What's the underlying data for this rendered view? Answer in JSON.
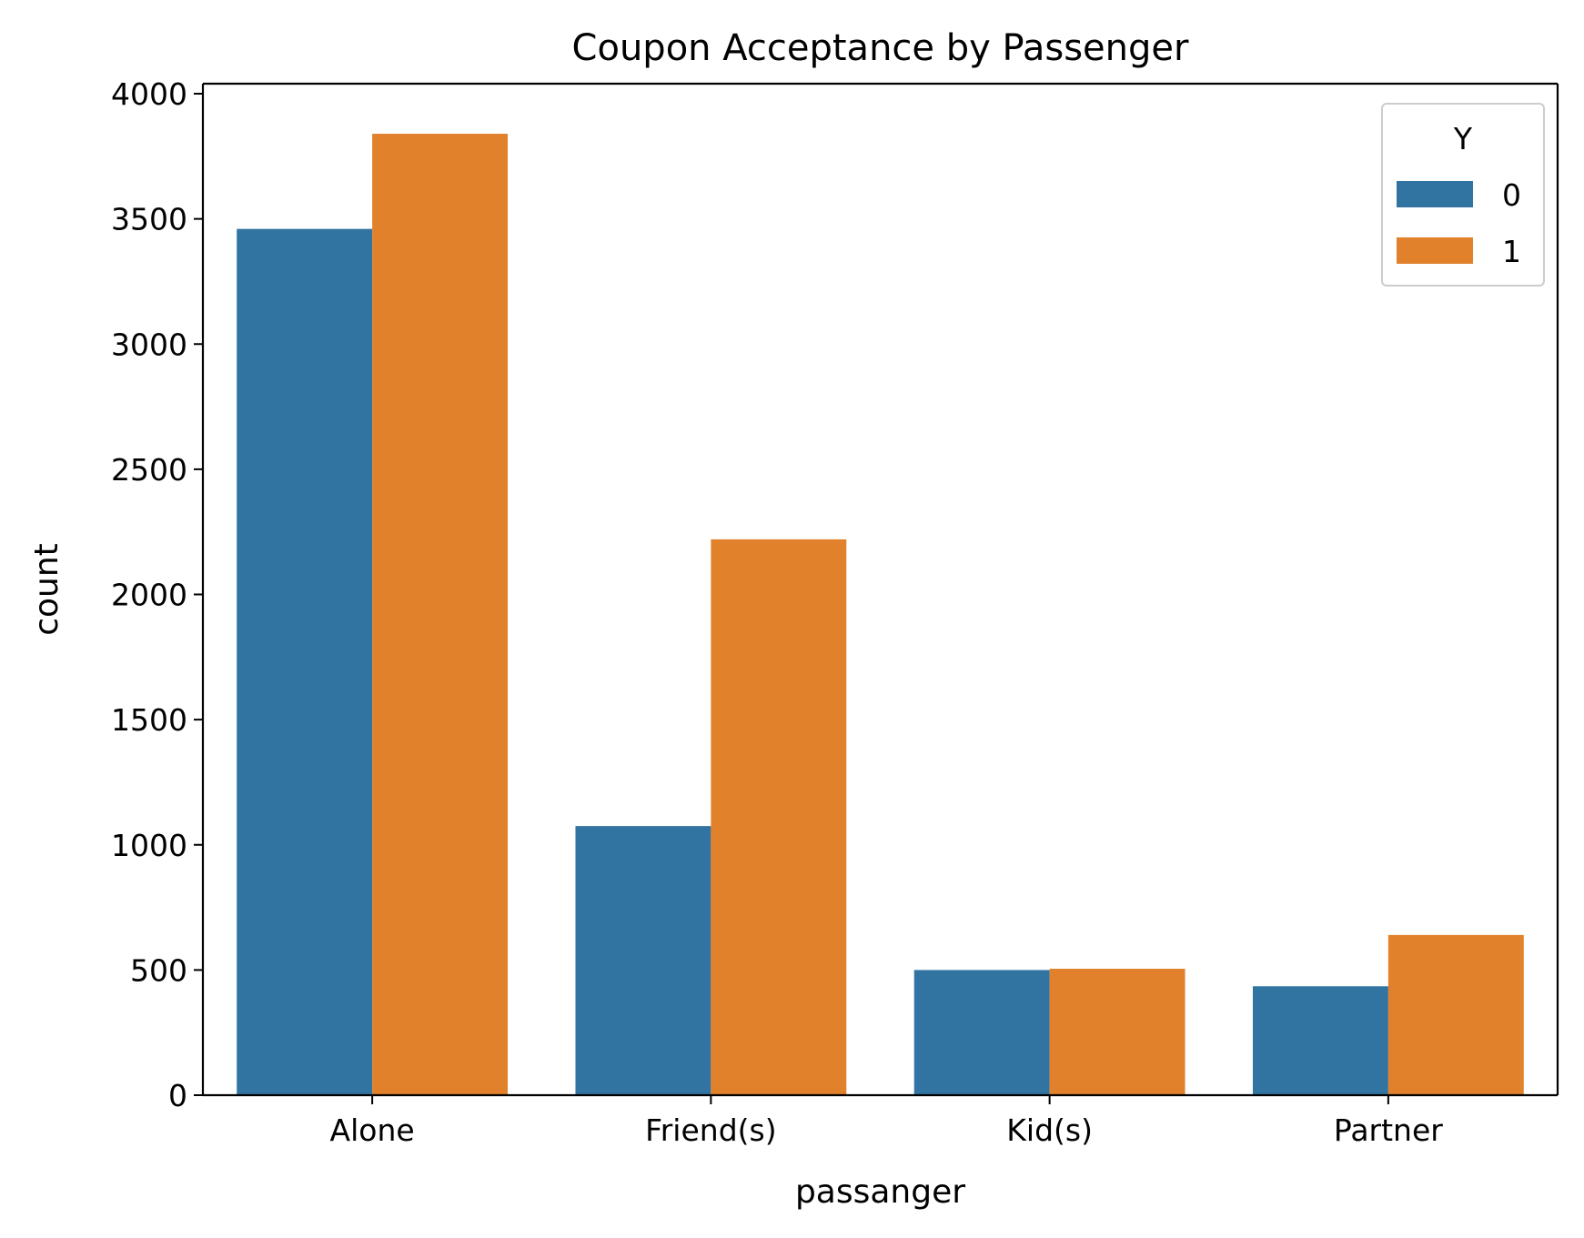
{
  "chart_data": {
    "type": "bar",
    "title": "Coupon Acceptance by Passenger",
    "xlabel": "passanger",
    "ylabel": "count",
    "categories": [
      "Alone",
      "Friend(s)",
      "Kid(s)",
      "Partner"
    ],
    "series": [
      {
        "name": "0",
        "color": "#3274a1",
        "values": [
          3460,
          1075,
          500,
          435
        ]
      },
      {
        "name": "1",
        "color": "#e1812c",
        "values": [
          3840,
          2220,
          505,
          640
        ]
      }
    ],
    "ylim": [
      0,
      4040
    ],
    "yticks": [
      0,
      500,
      1000,
      1500,
      2000,
      2500,
      3000,
      3500,
      4000
    ],
    "ytick_labels": [
      "0",
      "500",
      "1000",
      "1500",
      "2000",
      "2500",
      "3000",
      "3500",
      "4000"
    ],
    "grid": false,
    "legend": {
      "title": "Y",
      "placement": "top-right"
    }
  }
}
